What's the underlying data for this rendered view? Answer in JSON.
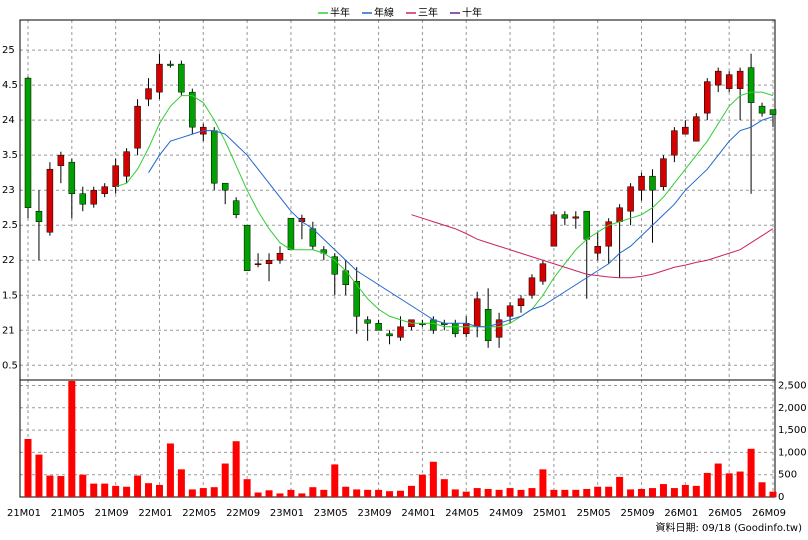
{
  "chart_data": {
    "type": "candlestick",
    "categories": [
      "21M01",
      null,
      null,
      null,
      "21M05",
      null,
      null,
      null,
      "21M09",
      null,
      null,
      null,
      "22M01",
      null,
      null,
      null,
      "22M05",
      null,
      null,
      null,
      "22M09",
      null,
      null,
      null,
      "23M01",
      null,
      null,
      null,
      "23M05",
      null,
      null,
      null,
      "23M09",
      null,
      null,
      null,
      "24M01",
      null,
      null,
      null,
      "24M05",
      null,
      null,
      null,
      "24M09",
      null,
      null,
      null,
      "25M01",
      null,
      null,
      null,
      "25M05",
      null,
      null,
      null,
      "25M09",
      null,
      null,
      null,
      "26M01",
      null,
      null,
      null,
      "26M05",
      null,
      null,
      null,
      "26M09"
    ],
    "open": [
      24.6,
      22.7,
      22.4,
      23.35,
      23.4,
      22.95,
      22.8,
      22.95,
      23.05,
      23.2,
      23.6,
      24.3,
      24.4,
      24.8,
      24.8,
      24.4,
      23.8,
      23.85,
      23.1,
      22.85,
      22.5,
      21.95,
      21.95,
      22.0,
      22.6,
      22.55,
      22.45,
      22.15,
      22.05,
      21.85,
      21.7,
      21.15,
      21.1,
      20.95,
      20.9,
      21.05,
      21.1,
      21.15,
      21.1,
      21.1,
      20.95,
      21.05,
      21.3,
      20.9,
      21.2,
      21.35,
      21.5,
      21.7,
      22.2,
      22.65,
      22.6,
      22.7,
      22.1,
      22.2,
      22.55,
      22.7,
      23.0,
      23.2,
      23.05,
      23.5,
      23.8,
      23.7,
      24.1,
      24.5,
      24.45,
      24.45,
      24.75,
      24.2,
      24.15
    ],
    "high": [
      24.62,
      23.0,
      23.4,
      23.55,
      23.45,
      23.05,
      23.05,
      23.1,
      23.45,
      23.6,
      24.3,
      24.6,
      24.95,
      24.85,
      24.85,
      24.45,
      23.95,
      23.9,
      23.1,
      22.9,
      22.5,
      22.1,
      22.1,
      22.2,
      22.6,
      22.65,
      22.55,
      22.2,
      22.1,
      22.0,
      21.9,
      21.2,
      21.15,
      21.0,
      21.2,
      21.15,
      21.15,
      21.2,
      21.15,
      21.15,
      21.2,
      21.55,
      21.6,
      21.25,
      21.4,
      21.5,
      21.8,
      22.0,
      22.7,
      22.7,
      22.7,
      22.7,
      22.4,
      22.6,
      22.8,
      23.1,
      23.25,
      23.3,
      23.5,
      23.9,
      24.0,
      24.1,
      24.6,
      24.75,
      24.7,
      24.75,
      24.95,
      24.25,
      24.15
    ],
    "low": [
      22.6,
      22.0,
      22.35,
      23.1,
      22.6,
      22.7,
      22.75,
      22.9,
      22.95,
      23.1,
      23.5,
      24.2,
      24.3,
      24.75,
      24.35,
      23.8,
      23.7,
      23.0,
      22.8,
      22.6,
      21.85,
      21.9,
      21.7,
      21.95,
      22.15,
      22.3,
      22.15,
      22.0,
      21.5,
      21.5,
      20.95,
      20.85,
      21.0,
      20.8,
      20.85,
      21.0,
      21.05,
      20.95,
      21.0,
      20.9,
      20.9,
      20.9,
      20.75,
      20.75,
      21.1,
      21.25,
      21.45,
      21.65,
      22.2,
      22.5,
      22.45,
      21.45,
      22.0,
      21.95,
      21.75,
      22.5,
      22.85,
      22.25,
      23.0,
      23.4,
      23.8,
      23.7,
      24.0,
      24.4,
      24.4,
      24.0,
      22.95,
      24.05,
      23.9
    ],
    "close": [
      22.75,
      22.55,
      23.3,
      23.5,
      22.95,
      22.8,
      23.0,
      23.05,
      23.35,
      23.55,
      24.2,
      24.45,
      24.8,
      24.78,
      24.4,
      23.9,
      23.9,
      23.1,
      23.0,
      22.65,
      21.85,
      21.95,
      22.0,
      22.1,
      22.15,
      22.6,
      22.2,
      22.1,
      21.8,
      21.65,
      21.2,
      21.1,
      21.0,
      20.92,
      21.05,
      21.15,
      21.08,
      21.0,
      21.08,
      20.95,
      21.1,
      21.45,
      20.85,
      21.15,
      21.35,
      21.45,
      21.75,
      21.95,
      22.65,
      22.6,
      22.62,
      22.3,
      22.2,
      22.55,
      22.75,
      23.05,
      23.2,
      23.0,
      23.45,
      23.85,
      23.9,
      24.05,
      24.55,
      24.7,
      24.65,
      24.7,
      24.25,
      24.1,
      24.08
    ],
    "up_color": "#d40000",
    "down_color": "#00a000",
    "ylim": [
      20.29,
      25.43
    ],
    "yticks": [
      25,
      {
        "value": 24.5,
        "label": "4.5"
      },
      24,
      {
        "value": 23.5,
        "label": "3.5"
      },
      23,
      {
        "value": 22.5,
        "label": "2.5"
      },
      22,
      {
        "value": 21.5,
        "label": "1.5"
      },
      21,
      {
        "value": 20.5,
        "label": "0.5"
      }
    ],
    "series": [
      {
        "name": "半年",
        "color": "#33cc33",
        "values": [
          null,
          null,
          null,
          null,
          null,
          null,
          null,
          null,
          23.05,
          23.1,
          23.3,
          23.6,
          23.95,
          24.2,
          24.35,
          24.35,
          24.25,
          24.0,
          23.7,
          23.35,
          23.0,
          22.7,
          22.45,
          22.25,
          22.15,
          22.15,
          22.15,
          22.1,
          22.0,
          21.85,
          21.65,
          21.45,
          21.3,
          21.2,
          21.15,
          21.1,
          21.1,
          21.1,
          21.05,
          21.05,
          21.05,
          21.05,
          21.05,
          21.05,
          21.1,
          21.2,
          21.3,
          21.5,
          21.75,
          21.95,
          22.15,
          22.3,
          22.4,
          22.5,
          22.55,
          22.6,
          22.65,
          22.75,
          22.9,
          23.1,
          23.3,
          23.5,
          23.7,
          23.95,
          24.2,
          24.35,
          24.4,
          24.4,
          24.35
        ]
      },
      {
        "name": "年線",
        "color": "#2266cc",
        "values": [
          null,
          null,
          null,
          null,
          null,
          null,
          null,
          null,
          null,
          null,
          null,
          23.25,
          23.5,
          23.7,
          23.75,
          23.8,
          23.85,
          23.85,
          23.8,
          23.65,
          23.5,
          23.3,
          23.1,
          22.9,
          22.7,
          22.55,
          22.45,
          22.3,
          22.15,
          22.0,
          21.85,
          21.75,
          21.65,
          21.55,
          21.45,
          21.35,
          21.25,
          21.15,
          21.1,
          21.1,
          21.1,
          21.05,
          21.05,
          21.1,
          21.15,
          21.2,
          21.3,
          21.35,
          21.45,
          21.55,
          21.65,
          21.75,
          21.85,
          21.95,
          22.1,
          22.2,
          22.35,
          22.5,
          22.65,
          22.8,
          23.0,
          23.15,
          23.3,
          23.5,
          23.7,
          23.85,
          23.9,
          24.0,
          24.05
        ]
      },
      {
        "name": "三年",
        "color": "#cc2266",
        "values": [
          null,
          null,
          null,
          null,
          null,
          null,
          null,
          null,
          null,
          null,
          null,
          null,
          null,
          null,
          null,
          null,
          null,
          null,
          null,
          null,
          null,
          null,
          null,
          null,
          null,
          null,
          null,
          null,
          null,
          null,
          null,
          null,
          null,
          null,
          null,
          22.65,
          22.6,
          22.55,
          22.5,
          22.45,
          22.38,
          22.3,
          22.25,
          22.2,
          22.15,
          22.1,
          22.05,
          22.0,
          21.95,
          21.9,
          21.85,
          21.8,
          21.78,
          21.76,
          21.75,
          21.75,
          21.77,
          21.8,
          21.85,
          21.9,
          21.93,
          21.97,
          22.0,
          22.05,
          22.1,
          22.15,
          22.25,
          22.35,
          22.45
        ]
      },
      {
        "name": "十年",
        "color": "#662299",
        "values": [
          null,
          null,
          null,
          null,
          null,
          null,
          null,
          null,
          null,
          null,
          null,
          null,
          null,
          null,
          null,
          null,
          null,
          null,
          null,
          null,
          null,
          null,
          null,
          null,
          null,
          null,
          null,
          null,
          null,
          null,
          null,
          null,
          null,
          null,
          null,
          null,
          null,
          null,
          null,
          null,
          null,
          null,
          null,
          null,
          null,
          null,
          null,
          null,
          null,
          null,
          null,
          null,
          null,
          null,
          null,
          null,
          null,
          null,
          null,
          null,
          null,
          null,
          null,
          null,
          null,
          null,
          null,
          null,
          null
        ]
      }
    ],
    "volume": {
      "color": "#ff0000",
      "values": [
        1300,
        950,
        480,
        470,
        2600,
        500,
        300,
        300,
        250,
        230,
        480,
        310,
        270,
        1200,
        620,
        170,
        200,
        220,
        750,
        1250,
        400,
        100,
        150,
        80,
        160,
        80,
        220,
        160,
        730,
        230,
        170,
        160,
        160,
        130,
        140,
        250,
        500,
        790,
        400,
        170,
        120,
        200,
        180,
        160,
        200,
        160,
        200,
        620,
        160,
        160,
        160,
        180,
        230,
        230,
        450,
        170,
        180,
        200,
        290,
        200,
        270,
        250,
        540,
        750,
        530,
        570,
        1080,
        330,
        120
      ],
      "ylim": [
        0,
        2600
      ],
      "yticks": [
        0,
        500,
        {
          "value": 1000,
          "label": "1,000"
        },
        {
          "value": 1500,
          "label": "1,500"
        },
        {
          "value": 2000,
          "label": "2,000"
        },
        {
          "value": 2500,
          "label": "2,500"
        }
      ]
    },
    "footer": "資料日期: 09/18 (Goodinfo.tw)"
  }
}
